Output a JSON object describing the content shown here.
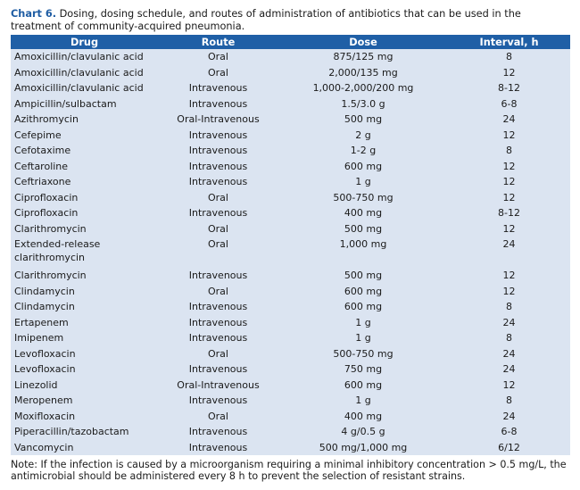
{
  "caption": {
    "label": "Chart 6.",
    "text": " Dosing, dosing schedule, and routes of administration of antibiotics that can be used in the treatment of community-acquired pneumonia."
  },
  "headers": [
    "Drug",
    "Route",
    "Dose",
    "Interval, h"
  ],
  "rows": [
    {
      "drug": "Amoxicillin/clavulanic acid",
      "route": "Oral",
      "dose": "875/125 mg",
      "interval": "8"
    },
    {
      "drug": "Amoxicillin/clavulanic acid",
      "route": "Oral",
      "dose": "2,000/135 mg",
      "interval": "12"
    },
    {
      "drug": "Amoxicillin/clavulanic acid",
      "route": "Intravenous",
      "dose": "1,000-2,000/200 mg",
      "interval": "8-12"
    },
    {
      "drug": "Ampicillin/sulbactam",
      "route": "Intravenous",
      "dose": "1.5/3.0 g",
      "interval": "6-8"
    },
    {
      "drug": "Azithromycin",
      "route": "Oral-Intravenous",
      "dose": "500 mg",
      "interval": "24"
    },
    {
      "drug": "Cefepime",
      "route": "Intravenous",
      "dose": "2 g",
      "interval": "12"
    },
    {
      "drug": "Cefotaxime",
      "route": "Intravenous",
      "dose": "1-2 g",
      "interval": "8"
    },
    {
      "drug": "Ceftaroline",
      "route": "Intravenous",
      "dose": "600 mg",
      "interval": "12"
    },
    {
      "drug": "Ceftriaxone",
      "route": "Intravenous",
      "dose": "1 g",
      "interval": "12"
    },
    {
      "drug": "Ciprofloxacin",
      "route": "Oral",
      "dose": "500-750 mg",
      "interval": "12"
    },
    {
      "drug": "Ciprofloxacin",
      "route": "Intravenous",
      "dose": "400 mg",
      "interval": "8-12"
    },
    {
      "drug": "Clarithromycin",
      "route": "Oral",
      "dose": "500 mg",
      "interval": "12"
    },
    {
      "drug": "Extended-release clarithromycin",
      "route": "Oral",
      "dose": "1,000 mg",
      "interval": "24"
    },
    {
      "drug": "Clarithromycin",
      "route": "Intravenous",
      "dose": "500 mg",
      "interval": "12"
    },
    {
      "drug": "Clindamycin",
      "route": "Oral",
      "dose": "600 mg",
      "interval": "12"
    },
    {
      "drug": "Clindamycin",
      "route": "Intravenous",
      "dose": "600 mg",
      "interval": "8"
    },
    {
      "drug": "Ertapenem",
      "route": "Intravenous",
      "dose": "1 g",
      "interval": "24"
    },
    {
      "drug": "Imipenem",
      "route": "Intravenous",
      "dose": "1 g",
      "interval": "8"
    },
    {
      "drug": "Levofloxacin",
      "route": "Oral",
      "dose": "500-750 mg",
      "interval": "24"
    },
    {
      "drug": "Levofloxacin",
      "route": "Intravenous",
      "dose": "750 mg",
      "interval": "24"
    },
    {
      "drug": "Linezolid",
      "route": "Oral-Intravenous",
      "dose": "600 mg",
      "interval": "12"
    },
    {
      "drug": "Meropenem",
      "route": "Intravenous",
      "dose": "1 g",
      "interval": "8"
    },
    {
      "drug": "Moxifloxacin",
      "route": "Oral",
      "dose": "400 mg",
      "interval": "24"
    },
    {
      "drug": "Piperacillin/tazobactam",
      "route": "Intravenous",
      "dose": "4 g/0.5 g",
      "interval": "6-8"
    },
    {
      "drug": "Vancomycin",
      "route": "Intravenous",
      "dose": "500 mg/1,000 mg",
      "interval": "6/12"
    }
  ],
  "note": "Note: If the infection is caused by a microorganism requiring a minimal inhibitory concentration > 0.5 mg/L, the antimicrobial should be administered every 8 h to prevent the selection of resistant strains."
}
